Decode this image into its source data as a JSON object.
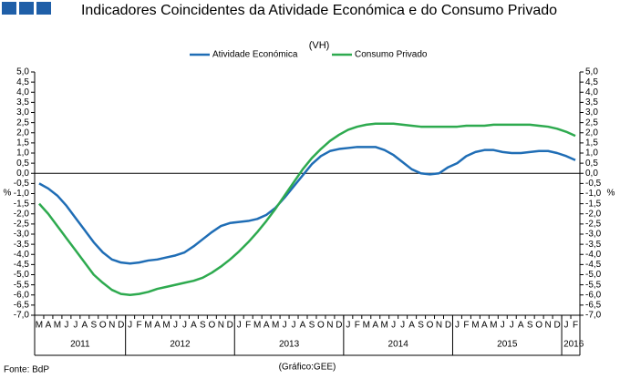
{
  "chart_data": {
    "type": "line",
    "title": "Indicadores Coincidentes da Atividade Económica e do Consumo Privado",
    "subtitle": "(VH)",
    "y_label": "%",
    "y2_label": "%",
    "source": "Fonte: BdP",
    "credit": "(Gráfico:GEE)",
    "categories": [
      "M",
      "A",
      "M",
      "J",
      "J",
      "A",
      "S",
      "O",
      "N",
      "D",
      "J",
      "F",
      "M",
      "A",
      "M",
      "J",
      "J",
      "A",
      "S",
      "O",
      "N",
      "D",
      "J",
      "F",
      "M",
      "A",
      "M",
      "J",
      "J",
      "A",
      "S",
      "O",
      "N",
      "D",
      "J",
      "F",
      "M",
      "A",
      "M",
      "J",
      "J",
      "A",
      "S",
      "O",
      "N",
      "D",
      "J",
      "F",
      "M",
      "A",
      "M",
      "J",
      "J",
      "A",
      "S",
      "O",
      "N",
      "D",
      "J",
      "F"
    ],
    "years": [
      "2011",
      "2012",
      "2013",
      "2014",
      "2015",
      "2016"
    ],
    "series": [
      {
        "name": "Atividade Económica",
        "color": "#1f6db5",
        "values": [
          -0.5,
          -0.75,
          -1.1,
          -1.6,
          -2.2,
          -2.8,
          -3.4,
          -3.9,
          -4.25,
          -4.4,
          -4.45,
          -4.4,
          -4.3,
          -4.25,
          -4.15,
          -4.05,
          -3.9,
          -3.6,
          -3.25,
          -2.9,
          -2.6,
          -2.45,
          -2.4,
          -2.35,
          -2.25,
          -2.05,
          -1.7,
          -1.2,
          -0.65,
          -0.1,
          0.45,
          0.85,
          1.1,
          1.2,
          1.25,
          1.3,
          1.3,
          1.3,
          1.15,
          0.9,
          0.55,
          0.2,
          0.0,
          -0.05,
          0.0,
          0.3,
          0.5,
          0.85,
          1.05,
          1.15,
          1.15,
          1.05,
          1.0,
          1.0,
          1.05,
          1.1,
          1.1,
          1.0,
          0.85,
          0.65
        ]
      },
      {
        "name": "Consumo Privado",
        "color": "#2eaa4f",
        "axis": "y2",
        "values": [
          -1.5,
          -2.0,
          -2.6,
          -3.2,
          -3.8,
          -4.4,
          -5.0,
          -5.4,
          -5.75,
          -5.95,
          -6.0,
          -5.95,
          -5.85,
          -5.7,
          -5.6,
          -5.5,
          -5.4,
          -5.3,
          -5.15,
          -4.9,
          -4.6,
          -4.25,
          -3.85,
          -3.4,
          -2.9,
          -2.35,
          -1.75,
          -1.1,
          -0.45,
          0.2,
          0.75,
          1.2,
          1.6,
          1.9,
          2.15,
          2.3,
          2.4,
          2.45,
          2.45,
          2.45,
          2.4,
          2.35,
          2.3,
          2.3,
          2.3,
          2.3,
          2.3,
          2.35,
          2.35,
          2.35,
          2.4,
          2.4,
          2.4,
          2.4,
          2.4,
          2.35,
          2.3,
          2.2,
          2.05,
          1.85
        ]
      }
    ],
    "ylim": [
      -7,
      5
    ],
    "y2lim": [
      -7,
      5
    ],
    "yticks": [
      {
        "value": 5,
        "label": "5,0"
      },
      {
        "value": 4.5,
        "label": "4,5"
      },
      {
        "value": 4,
        "label": "4,0"
      },
      {
        "value": 3.5,
        "label": "3,5"
      },
      {
        "value": 3,
        "label": "3,0"
      },
      {
        "value": 2.5,
        "label": "2,5"
      },
      {
        "value": 2,
        "label": "2,0"
      },
      {
        "value": 1.5,
        "label": "1,5"
      },
      {
        "value": 1,
        "label": "1,0"
      },
      {
        "value": 0.5,
        "label": "0,5"
      },
      {
        "value": 0,
        "label": "0,0"
      },
      {
        "value": -0.5,
        "label": "-0,5"
      },
      {
        "value": -1,
        "label": "-1,0"
      },
      {
        "value": -1.5,
        "label": "-1,5"
      },
      {
        "value": -2,
        "label": "-2,0"
      },
      {
        "value": -2.5,
        "label": "-2,5"
      },
      {
        "value": -3,
        "label": "-3,0"
      },
      {
        "value": -3.5,
        "label": "-3,5"
      },
      {
        "value": -4,
        "label": "-4,0"
      },
      {
        "value": -4.5,
        "label": "-4,5"
      },
      {
        "value": -5,
        "label": "-5,0"
      },
      {
        "value": -5.5,
        "label": "-5,5"
      },
      {
        "value": -6,
        "label": "-6,0"
      },
      {
        "value": -6.5,
        "label": "-6,5"
      },
      {
        "value": -7,
        "label": "-7,0"
      }
    ],
    "y2ticks": [
      {
        "value": 5,
        "label": "5,0"
      },
      {
        "value": 4.5,
        "label": "4,5"
      },
      {
        "value": 4,
        "label": "4,0"
      },
      {
        "value": 3.5,
        "label": "3,5"
      },
      {
        "value": 3,
        "label": "3,0"
      },
      {
        "value": 2.5,
        "label": "2,5"
      },
      {
        "value": 2,
        "label": "2,0"
      },
      {
        "value": 1.5,
        "label": "1,5"
      },
      {
        "value": 1,
        "label": "1,0"
      },
      {
        "value": 0.5,
        "label": "0,5"
      },
      {
        "value": 0,
        "label": "0,0"
      },
      {
        "value": -0.5,
        "label": "-0,5"
      },
      {
        "value": -1,
        "label": "-1,0"
      },
      {
        "value": -1.5,
        "label": "-1,5"
      },
      {
        "value": -2,
        "label": "-2,0"
      },
      {
        "value": -2.5,
        "label": "-2,5"
      },
      {
        "value": -3,
        "label": "-3,0"
      },
      {
        "value": -3.5,
        "label": "-3,5"
      },
      {
        "value": -4,
        "label": "-4,0"
      },
      {
        "value": -4.5,
        "label": "-4,5"
      },
      {
        "value": -5,
        "label": "-5,0"
      },
      {
        "value": -5.5,
        "label": "-5,5"
      },
      {
        "value": -6,
        "label": "-6,0"
      },
      {
        "value": -6.5,
        "label": "-6,5"
      },
      {
        "value": -7,
        "label": "-7,0"
      }
    ]
  }
}
